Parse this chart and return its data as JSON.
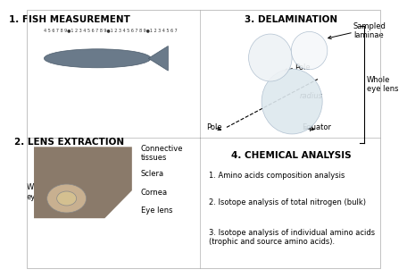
{
  "title1": "1. FISH MEASUREMENT",
  "title2": "2. LENS EXTRACTION",
  "title3": "3. DELAMINATION",
  "title4": "4. CHEMICAL ANALYSIS",
  "chemical_items": [
    "1. Amino acids composition analysis",
    "2. Isotope analysis of total nitrogen (bulk)",
    "3. Isotope analysis of individual amino acids\n(trophic and source amino acids)."
  ],
  "lens_labels": [
    "Connective\ntissues",
    "Sclera",
    "Cornea",
    "Eye lens"
  ],
  "whole_eye_label": "Whole\neye",
  "bg_color": "#ffffff",
  "title_fontsize": 7.5,
  "text_fontsize": 6.0,
  "label_fontsize": 6.0
}
